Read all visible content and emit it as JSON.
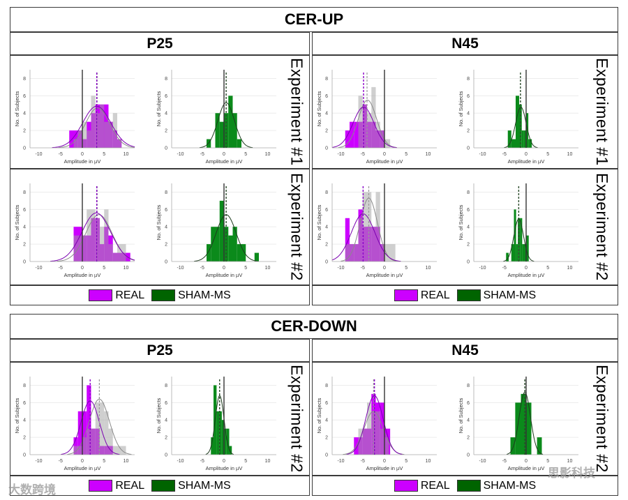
{
  "sections": [
    {
      "title": "CER-UP",
      "columns": [
        {
          "header": "P25"
        },
        {
          "header": "N45"
        }
      ],
      "rows": [
        "Experiment #1",
        "Experiment #2"
      ]
    },
    {
      "title": "CER-DOWN",
      "columns": [
        {
          "header": "P25"
        },
        {
          "header": "N45"
        }
      ],
      "rows": [
        "Experiment #2"
      ]
    }
  ],
  "legend": {
    "real": "REAL",
    "sham": "SHAM-MS"
  },
  "colors": {
    "real": "#cc00ff",
    "sham": "#0b8a1b",
    "gray": "#a0a0a0",
    "legend_sham": "#006400"
  },
  "watermarks": [
    "大数跨境",
    "思影科技"
  ],
  "chart_data": [
    {
      "type": "bar",
      "section": "CER-UP",
      "component": "P25",
      "experiment": "Experiment #1",
      "xlabel": "Amplitude in µV",
      "ylabel": "No. of Subjects",
      "xlim": [
        -12,
        12
      ],
      "ylim": [
        0,
        9
      ],
      "xticks": [
        -10,
        -5,
        0,
        5,
        10
      ],
      "yticks": [
        0,
        2,
        4,
        6,
        8
      ],
      "real": {
        "bars": [
          [
            -3,
            -1,
            2
          ],
          [
            -1,
            0,
            2
          ],
          [
            0,
            1,
            1
          ],
          [
            1,
            2,
            3
          ],
          [
            2,
            3,
            4
          ],
          [
            3,
            4,
            5
          ],
          [
            4,
            6,
            5
          ],
          [
            6,
            7,
            3
          ],
          [
            7,
            8,
            2
          ],
          [
            8,
            9,
            1
          ]
        ],
        "gray_bars": [
          [
            -2,
            -1,
            1
          ],
          [
            -1,
            0,
            2
          ],
          [
            0,
            1,
            3
          ],
          [
            1,
            2,
            2
          ],
          [
            2,
            3,
            6
          ],
          [
            3,
            4,
            4
          ],
          [
            4,
            5,
            5
          ],
          [
            5,
            6,
            3
          ],
          [
            6,
            7,
            3
          ],
          [
            7,
            8,
            4
          ],
          [
            8,
            9,
            1
          ]
        ],
        "fit": {
          "mean": 3.3,
          "sd": 3.2,
          "peak": 4.8
        },
        "gray_fit": {
          "mean": 3.5,
          "sd": 2.8,
          "peak": 4.6
        },
        "mean": 3.3,
        "gray_mean": 3.4
      },
      "sham": {
        "bars": [
          [
            -4,
            -3,
            1
          ],
          [
            -2,
            -1,
            4
          ],
          [
            -1,
            0,
            3
          ],
          [
            0,
            1,
            4
          ],
          [
            1,
            2,
            6
          ],
          [
            2,
            3,
            4
          ],
          [
            3,
            4,
            1
          ]
        ],
        "fit": {
          "mean": 0.5,
          "sd": 1.9,
          "peak": 5.2
        },
        "mean": 0.5
      }
    },
    {
      "type": "bar",
      "section": "CER-UP",
      "component": "N45",
      "experiment": "Experiment #1",
      "xlabel": "Amplitude in µV",
      "ylabel": "No. of Subjects",
      "xlim": [
        -12,
        12
      ],
      "ylim": [
        0,
        9
      ],
      "xticks": [
        -10,
        -5,
        0,
        5,
        10
      ],
      "yticks": [
        0,
        2,
        4,
        6,
        8
      ],
      "real": {
        "bars": [
          [
            -9,
            -8,
            2
          ],
          [
            -8,
            -7,
            3
          ],
          [
            -7,
            -6,
            3
          ],
          [
            -6,
            -5,
            3
          ],
          [
            -5,
            -4,
            5
          ],
          [
            -4,
            -3,
            3
          ],
          [
            -3,
            -2,
            3
          ],
          [
            -2,
            -1,
            2
          ],
          [
            -1,
            0,
            2
          ]
        ],
        "gray_bars": [
          [
            -6,
            -5,
            6
          ],
          [
            -5,
            -4,
            5
          ],
          [
            -4,
            -3,
            4
          ],
          [
            -3,
            -2,
            7
          ],
          [
            -2,
            -1,
            3
          ],
          [
            -1,
            0,
            2
          ],
          [
            0,
            1.3,
            1
          ]
        ],
        "fit": {
          "mean": -4.8,
          "sd": 2.4,
          "peak": 4.7
        },
        "gray_fit": {
          "mean": -3.9,
          "sd": 2.1,
          "peak": 5.5
        },
        "mean": -4.8,
        "gray_mean": -4.0
      },
      "sham": {
        "bars": [
          [
            -4.2,
            -3.4,
            2
          ],
          [
            -3.4,
            -2.4,
            1
          ],
          [
            -2.4,
            -1.6,
            6
          ],
          [
            -1.6,
            -1,
            5
          ],
          [
            -1,
            -0.5,
            2
          ],
          [
            -0.5,
            0,
            2
          ],
          [
            0,
            0.5,
            4
          ],
          [
            0.5,
            1.3,
            1
          ]
        ],
        "fit": {
          "mean": -1.2,
          "sd": 1.2,
          "peak": 4.7
        },
        "mean": -1.3
      }
    },
    {
      "type": "bar",
      "section": "CER-UP",
      "component": "P25",
      "experiment": "Experiment #2",
      "xlabel": "Amplitude in µV",
      "ylabel": "No. of Subjects",
      "xlim": [
        -12,
        12
      ],
      "ylim": [
        0,
        9
      ],
      "xticks": [
        -10,
        -5,
        0,
        5,
        10
      ],
      "yticks": [
        0,
        2,
        4,
        6,
        8
      ],
      "real": {
        "bars": [
          [
            -2,
            0,
            4
          ],
          [
            0,
            1,
            3
          ],
          [
            1,
            2,
            3
          ],
          [
            2,
            3,
            5
          ],
          [
            3,
            4,
            5
          ],
          [
            4,
            5,
            2
          ],
          [
            5,
            6,
            4
          ],
          [
            6,
            7,
            3
          ],
          [
            7,
            8,
            1
          ],
          [
            8,
            10,
            1
          ],
          [
            10,
            11,
            1
          ]
        ],
        "gray_bars": [
          [
            -2,
            -1,
            3
          ],
          [
            -1,
            0,
            3
          ],
          [
            0,
            1,
            3
          ],
          [
            1,
            2,
            6
          ],
          [
            2,
            3,
            6
          ],
          [
            3,
            4,
            5
          ],
          [
            4,
            5,
            4
          ],
          [
            5,
            6,
            6
          ],
          [
            6,
            7,
            2
          ],
          [
            7,
            8,
            1
          ],
          [
            8,
            10,
            2
          ]
        ],
        "fit": {
          "mean": 3.2,
          "sd": 3.3,
          "peak": 5.6
        },
        "gray_fit": {
          "mean": 3.8,
          "sd": 3.0,
          "peak": 5.4
        },
        "mean": 3.3,
        "gray_mean": 3.4
      },
      "sham": {
        "bars": [
          [
            -4,
            -3,
            2
          ],
          [
            -3,
            -2,
            4
          ],
          [
            -2,
            -1,
            4
          ],
          [
            -1,
            0,
            7
          ],
          [
            0,
            1,
            4
          ],
          [
            1,
            2,
            3
          ],
          [
            2,
            3,
            4
          ],
          [
            3,
            4,
            2
          ],
          [
            4,
            5,
            2
          ],
          [
            7,
            8,
            1
          ]
        ],
        "fit": {
          "mean": 0.5,
          "sd": 2.3,
          "peak": 5.4
        },
        "mean": 0.5
      }
    },
    {
      "type": "bar",
      "section": "CER-UP",
      "component": "N45",
      "experiment": "Experiment #2",
      "xlabel": "Amplitude in µV",
      "ylabel": "No. of Subjects",
      "xlim": [
        -12,
        12
      ],
      "ylim": [
        0,
        9
      ],
      "xticks": [
        -10,
        -5,
        0,
        5,
        10
      ],
      "yticks": [
        0,
        2,
        4,
        6,
        8
      ],
      "real": {
        "bars": [
          [
            -9,
            -8,
            5
          ],
          [
            -8,
            -7,
            2
          ],
          [
            -7,
            -6,
            2
          ],
          [
            -6,
            -5,
            6
          ],
          [
            -5,
            -4,
            4
          ],
          [
            -4,
            -3,
            4
          ],
          [
            -3,
            -2,
            4
          ],
          [
            -2,
            -1,
            4
          ],
          [
            -1,
            0,
            2
          ]
        ],
        "gray_bars": [
          [
            -9,
            -6,
            2
          ],
          [
            -6,
            -5,
            5
          ],
          [
            -5,
            -4,
            8
          ],
          [
            -4,
            -3,
            8
          ],
          [
            -3,
            -2,
            4
          ],
          [
            -2,
            -1,
            8
          ],
          [
            -1,
            0,
            2
          ],
          [
            0,
            2.5,
            2
          ]
        ],
        "fit": {
          "mean": -4.9,
          "sd": 2.7,
          "peak": 5.5
        },
        "gray_fit": {
          "mean": -3.6,
          "sd": 2.0,
          "peak": 7.3
        },
        "mean": -4.9,
        "gray_mean": -3.6
      },
      "sham": {
        "bars": [
          [
            -4.6,
            -4,
            1
          ],
          [
            -3.4,
            -2.8,
            2
          ],
          [
            -2.8,
            -2.3,
            6
          ],
          [
            -2.3,
            -1.9,
            2
          ],
          [
            -1.9,
            -1.4,
            5
          ],
          [
            -1.4,
            -0.9,
            5
          ],
          [
            -0.9,
            -0.4,
            2
          ],
          [
            -0.4,
            0,
            2
          ],
          [
            0,
            0.6,
            3
          ]
        ],
        "fit": {
          "mean": -1.7,
          "sd": 1.1,
          "peak": 4.9
        },
        "mean": -1.7
      }
    },
    {
      "type": "bar",
      "section": "CER-DOWN",
      "component": "P25",
      "experiment": "Experiment #2",
      "xlabel": "Amplitude in µV",
      "ylabel": "No. of Subjects",
      "xlim": [
        -12,
        12
      ],
      "ylim": [
        0,
        9
      ],
      "xticks": [
        -10,
        -5,
        0,
        5,
        10
      ],
      "yticks": [
        0,
        2,
        4,
        6,
        8
      ],
      "real": {
        "bars": [
          [
            -2,
            -1,
            2
          ],
          [
            -1,
            0,
            5
          ],
          [
            0,
            1,
            5
          ],
          [
            1,
            2,
            8
          ],
          [
            2,
            3,
            3
          ],
          [
            3,
            4,
            3
          ],
          [
            4,
            5,
            1
          ],
          [
            5,
            7,
            1
          ]
        ],
        "gray_bars": [
          [
            -2,
            0,
            1
          ],
          [
            0,
            1,
            2
          ],
          [
            1,
            3,
            3
          ],
          [
            3,
            4,
            6
          ],
          [
            4,
            5,
            6
          ],
          [
            5,
            6,
            5
          ],
          [
            6,
            7,
            3
          ],
          [
            7,
            9,
            1
          ],
          [
            9,
            10,
            1
          ]
        ],
        "fit": {
          "mean": 1.8,
          "sd": 2.1,
          "peak": 6.2
        },
        "gray_fit": {
          "mean": 3.9,
          "sd": 2.3,
          "peak": 6.4
        },
        "mean": 1.8,
        "gray_mean": 3.9
      },
      "sham": {
        "bars": [
          [
            -3,
            -2.4,
            2
          ],
          [
            -2.4,
            -1.7,
            8
          ],
          [
            -1.7,
            -1.1,
            5
          ],
          [
            -1.1,
            -0.5,
            5
          ],
          [
            -0.5,
            0,
            4
          ],
          [
            0,
            0.6,
            3
          ],
          [
            0.6,
            1.2,
            3
          ],
          [
            1.2,
            1.8,
            1
          ]
        ],
        "fit": {
          "mean": -1.0,
          "sd": 1.0,
          "peak": 6.8
        },
        "mean": -1.0
      }
    },
    {
      "type": "bar",
      "section": "CER-DOWN",
      "component": "N45",
      "experiment": "Experiment #2",
      "xlabel": "Amplitude in µV",
      "ylabel": "No. of Subjects",
      "xlim": [
        -12,
        12
      ],
      "ylim": [
        0,
        9
      ],
      "xticks": [
        -10,
        -5,
        0,
        5,
        10
      ],
      "yticks": [
        0,
        2,
        4,
        6,
        8
      ],
      "real": {
        "bars": [
          [
            -7,
            -6,
            2
          ],
          [
            -6,
            -5,
            2
          ],
          [
            -5,
            -4,
            3
          ],
          [
            -4,
            -3,
            3
          ],
          [
            -3,
            -2,
            7
          ],
          [
            -2,
            -1,
            6
          ],
          [
            -1,
            0,
            6
          ],
          [
            0,
            1.3,
            3
          ]
        ],
        "gray_bars": [
          [
            -6,
            -5,
            3
          ],
          [
            -5,
            -4,
            3
          ],
          [
            -4,
            -3,
            6
          ],
          [
            -3,
            -2,
            5
          ],
          [
            -2,
            -1,
            5
          ],
          [
            -1,
            0,
            3
          ],
          [
            0,
            1,
            2
          ]
        ],
        "fit": {
          "mean": -2.3,
          "sd": 2.0,
          "peak": 6.8
        },
        "gray_fit": {
          "mean": -2.5,
          "sd": 2.2,
          "peak": 5.0
        },
        "mean": -2.3,
        "gray_mean": -2.5
      },
      "sham": {
        "bars": [
          [
            -3.6,
            -2.5,
            2
          ],
          [
            -2.5,
            -1.2,
            6
          ],
          [
            -1.2,
            0,
            7
          ],
          [
            0,
            1.2,
            6
          ],
          [
            2.5,
            3.6,
            2
          ]
        ],
        "fit": {
          "mean": -0.3,
          "sd": 1.3,
          "peak": 7.2
        },
        "mean": -0.3
      }
    }
  ]
}
